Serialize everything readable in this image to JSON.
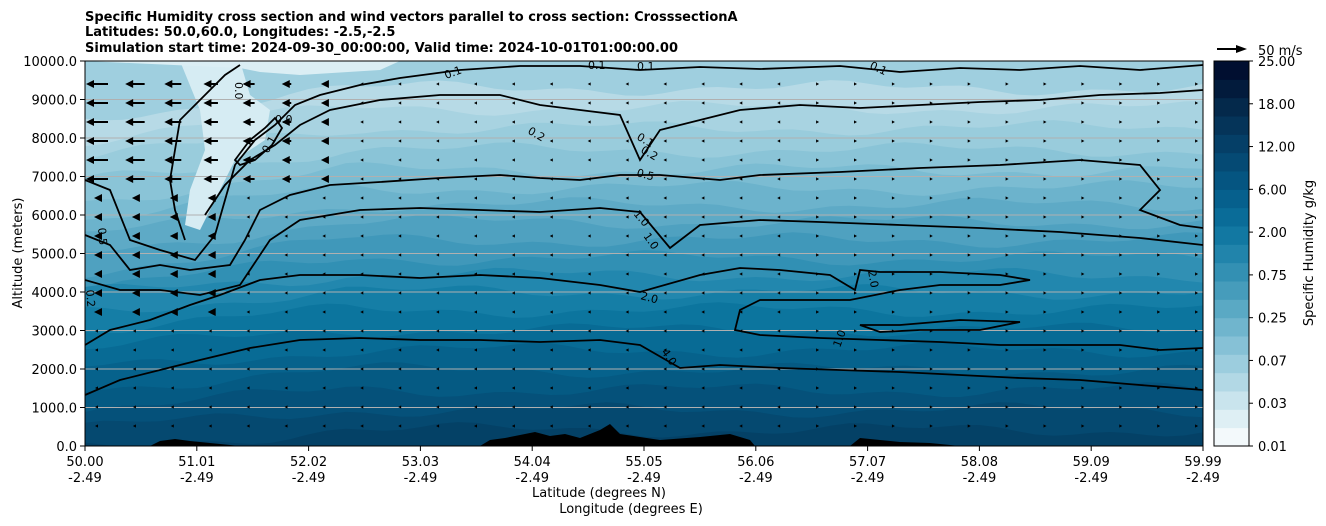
{
  "chart_data": {
    "type": "contourf",
    "title_lines": [
      "Specific Humidity cross section and wind vectors parallel to cross section: CrosssectionA",
      "Latitudes: 50.0,60.0, Longitudes: -2.5,-2.5",
      "Simulation start time: 2024-09-30_00:00:00, Valid time: 2024-10-01T01:00:00.00"
    ],
    "xlabel_lines": [
      "Latitude (degrees N)",
      "Longitude (degrees E)"
    ],
    "ylabel": "Altitude (meters)",
    "x_ticks": [
      {
        "lat": "50.00",
        "lon": "-2.49"
      },
      {
        "lat": "51.01",
        "lon": "-2.49"
      },
      {
        "lat": "52.02",
        "lon": "-2.49"
      },
      {
        "lat": "53.03",
        "lon": "-2.49"
      },
      {
        "lat": "54.04",
        "lon": "-2.49"
      },
      {
        "lat": "55.05",
        "lon": "-2.49"
      },
      {
        "lat": "56.06",
        "lon": "-2.49"
      },
      {
        "lat": "57.07",
        "lon": "-2.49"
      },
      {
        "lat": "58.08",
        "lon": "-2.49"
      },
      {
        "lat": "59.09",
        "lon": "-2.49"
      },
      {
        "lat": "59.99",
        "lon": "-2.49"
      }
    ],
    "y_ticks": [
      "0.0",
      "1000.0",
      "2000.0",
      "3000.0",
      "4000.0",
      "5000.0",
      "6000.0",
      "7000.0",
      "8000.0",
      "9000.0",
      "10000.0"
    ],
    "ylim": [
      0,
      10000
    ],
    "xlim": [
      50.0,
      59.99
    ],
    "grid": "horizontal",
    "colorbar": {
      "label": "Specific Humidity g/kg",
      "tick_labels": [
        "0.01",
        "0.03",
        "0.07",
        "0.25",
        "0.75",
        "2.00",
        "6.00",
        "12.00",
        "18.00",
        "25.00"
      ],
      "colors": [
        "#f3f9fb",
        "#deeff4",
        "#c9e4ed",
        "#b2d8e5",
        "#9ccdde",
        "#86c1d6",
        "#70b5cd",
        "#5aa9c4",
        "#469cbb",
        "#3390b3",
        "#2184ab",
        "#1278a2",
        "#0a6c98",
        "#06608d",
        "#055581",
        "#054a74",
        "#053f67",
        "#053459",
        "#04294b",
        "#021b3c",
        "#010f30"
      ]
    },
    "quiver_key": "50 m/s",
    "contour_labels": [
      "0.1",
      "0.1",
      "0.1",
      "0.1",
      "0.0",
      "0.0",
      "0.1",
      "0.2",
      "0.1",
      "0.2",
      "0.5",
      "1.0",
      "1.0",
      "2.0",
      "4.0",
      "0.5",
      "0.2",
      "2.0",
      "1.0"
    ]
  }
}
